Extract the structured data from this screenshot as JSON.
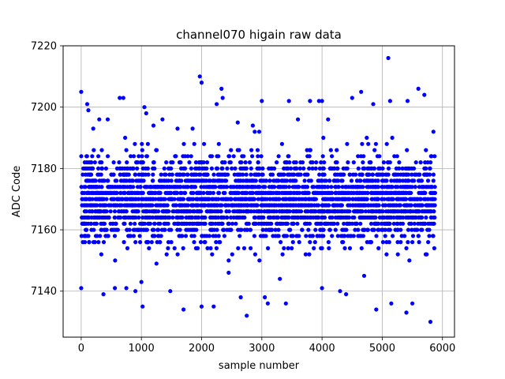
{
  "chart_data": {
    "type": "scatter",
    "title": "channel070 higain raw data",
    "xlabel": "sample number",
    "ylabel": "ADC Code",
    "xlim": [
      -300,
      6200
    ],
    "ylim": [
      7125,
      7220
    ],
    "xticks": [
      0,
      1000,
      2000,
      3000,
      4000,
      5000,
      6000
    ],
    "yticks": [
      7140,
      7160,
      7180,
      7200,
      7220
    ],
    "grid": true,
    "marker_color": "#0000ff",
    "series": [
      {
        "n": 5880,
        "typical_range": [
          7146,
          7194
        ],
        "center": 7170,
        "quantization_step": 2,
        "sampled_points": [
          [
            0,
            7205
          ],
          [
            0,
            7141
          ],
          [
            100,
            7201
          ],
          [
            120,
            7199
          ],
          [
            200,
            7193
          ],
          [
            300,
            7196
          ],
          [
            370,
            7139
          ],
          [
            440,
            7196
          ],
          [
            560,
            7141
          ],
          [
            640,
            7203
          ],
          [
            700,
            7203
          ],
          [
            750,
            7141
          ],
          [
            900,
            7140
          ],
          [
            1000,
            7143
          ],
          [
            1020,
            7135
          ],
          [
            1050,
            7200
          ],
          [
            1080,
            7198
          ],
          [
            1200,
            7194
          ],
          [
            1250,
            7149
          ],
          [
            1350,
            7196
          ],
          [
            1480,
            7140
          ],
          [
            1600,
            7193
          ],
          [
            1700,
            7134
          ],
          [
            1850,
            7193
          ],
          [
            1970,
            7210
          ],
          [
            2000,
            7208
          ],
          [
            2000,
            7135
          ],
          [
            2200,
            7135
          ],
          [
            2250,
            7201
          ],
          [
            2330,
            7206
          ],
          [
            2350,
            7203
          ],
          [
            2450,
            7146
          ],
          [
            2600,
            7195
          ],
          [
            2650,
            7138
          ],
          [
            2750,
            7132
          ],
          [
            2850,
            7194
          ],
          [
            3000,
            7202
          ],
          [
            3050,
            7138
          ],
          [
            3100,
            7136
          ],
          [
            3300,
            7144
          ],
          [
            3400,
            7136
          ],
          [
            3450,
            7202
          ],
          [
            3600,
            7196
          ],
          [
            3800,
            7202
          ],
          [
            3950,
            7202
          ],
          [
            4000,
            7202
          ],
          [
            4000,
            7141
          ],
          [
            4100,
            7196
          ],
          [
            4300,
            7140
          ],
          [
            4400,
            7139
          ],
          [
            4500,
            7203
          ],
          [
            4650,
            7205
          ],
          [
            4700,
            7145
          ],
          [
            4850,
            7201
          ],
          [
            4900,
            7134
          ],
          [
            5100,
            7216
          ],
          [
            5130,
            7202
          ],
          [
            5150,
            7136
          ],
          [
            5400,
            7133
          ],
          [
            5420,
            7202
          ],
          [
            5500,
            7136
          ],
          [
            5600,
            7206
          ],
          [
            5700,
            7204
          ],
          [
            5800,
            7130
          ],
          [
            5850,
            7192
          ]
        ]
      }
    ]
  }
}
